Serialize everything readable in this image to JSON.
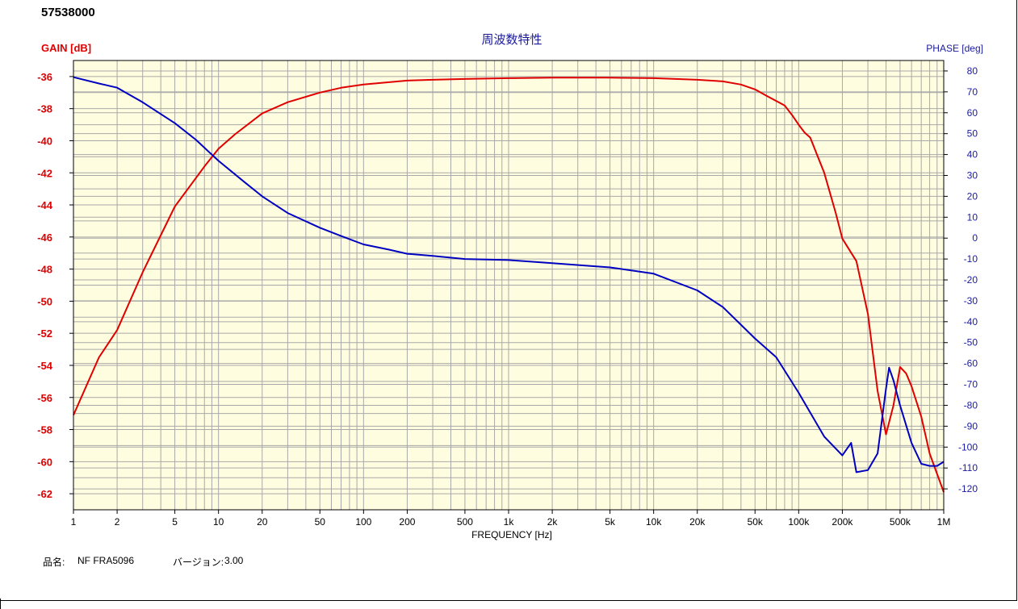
{
  "header": {
    "id": "57538000"
  },
  "footer": {
    "product_label": "品名:",
    "product_value": "NF FRA5096",
    "version_label": "バージョン:",
    "version_value": "3.00"
  },
  "chart_data": {
    "type": "line",
    "title": "周波数特性",
    "xlabel": "FREQUENCY [Hz]",
    "ylabel_left": "GAIN [dB]",
    "ylabel_right": "PHASE [deg]",
    "xscale": "log",
    "xlim": [
      1,
      1000000
    ],
    "ylim_left": [
      -63,
      -35
    ],
    "ylim_right": [
      -130,
      85
    ],
    "grid": true,
    "background": "#fffde0",
    "colors": {
      "gain": "#e00000",
      "phase": "#0000c0",
      "grid": "#a8a8a8"
    },
    "x_ticks": [
      1,
      2,
      5,
      10,
      20,
      50,
      100,
      200,
      500,
      1000,
      2000,
      5000,
      10000,
      20000,
      50000,
      100000,
      200000,
      500000,
      1000000
    ],
    "x_tick_labels": [
      "1",
      "2",
      "5",
      "10",
      "20",
      "50",
      "100",
      "200",
      "500",
      "1k",
      "2k",
      "5k",
      "10k",
      "20k",
      "50k",
      "100k",
      "200k",
      "500k",
      "1M"
    ],
    "y_left_ticks": [
      -36,
      -38,
      -40,
      -42,
      -44,
      -46,
      -48,
      -50,
      -52,
      -54,
      -56,
      -58,
      -60,
      -62
    ],
    "y_right_ticks": [
      80,
      70,
      60,
      50,
      40,
      30,
      20,
      10,
      0,
      -10,
      -20,
      -30,
      -40,
      -50,
      -60,
      -70,
      -80,
      -90,
      -100,
      -110,
      -120
    ],
    "series": [
      {
        "name": "GAIN [dB]",
        "axis": "left",
        "x": [
          1,
          1.5,
          2,
          3,
          5,
          8,
          10,
          13,
          20,
          30,
          50,
          70,
          100,
          150,
          200,
          300,
          500,
          1000,
          2000,
          5000,
          10000,
          20000,
          30000,
          40000,
          50000,
          60000,
          80000,
          90000,
          100000,
          110000,
          120000,
          150000,
          180000,
          200000,
          250000,
          300000,
          350000,
          400000,
          450000,
          500000,
          550000,
          600000,
          700000,
          800000,
          1000000
        ],
        "y": [
          -57.1,
          -53.5,
          -51.8,
          -48.2,
          -44.1,
          -41.6,
          -40.5,
          -39.6,
          -38.3,
          -37.6,
          -37.0,
          -36.7,
          -36.5,
          -36.35,
          -36.25,
          -36.2,
          -36.15,
          -36.1,
          -36.07,
          -36.07,
          -36.1,
          -36.2,
          -36.3,
          -36.5,
          -36.8,
          -37.2,
          -37.8,
          -38.4,
          -39.0,
          -39.5,
          -39.8,
          -42.0,
          -44.5,
          -46.1,
          -47.5,
          -50.8,
          -55.6,
          -58.3,
          -56.5,
          -54.1,
          -54.5,
          -55.3,
          -57.2,
          -59.5,
          -61.9
        ]
      },
      {
        "name": "PHASE [deg]",
        "axis": "right",
        "x": [
          1,
          1.5,
          2,
          3,
          5,
          7,
          10,
          15,
          20,
          30,
          50,
          70,
          100,
          150,
          200,
          300,
          500,
          1000,
          2000,
          5000,
          10000,
          20000,
          30000,
          50000,
          70000,
          100000,
          150000,
          200000,
          230000,
          250000,
          300000,
          350000,
          400000,
          420000,
          450000,
          500000,
          600000,
          700000,
          800000,
          900000,
          1000000
        ],
        "y": [
          77,
          74,
          72,
          65,
          55,
          47,
          37,
          27,
          20,
          12,
          5,
          1,
          -3,
          -5.5,
          -7.5,
          -8.5,
          -10,
          -10.5,
          -12,
          -14,
          -17,
          -25,
          -33,
          -48,
          -57,
          -74,
          -95,
          -104,
          -98,
          -112,
          -111,
          -103,
          -72,
          -62,
          -68,
          -80,
          -98,
          -108,
          -109,
          -109,
          -107
        ]
      }
    ]
  }
}
